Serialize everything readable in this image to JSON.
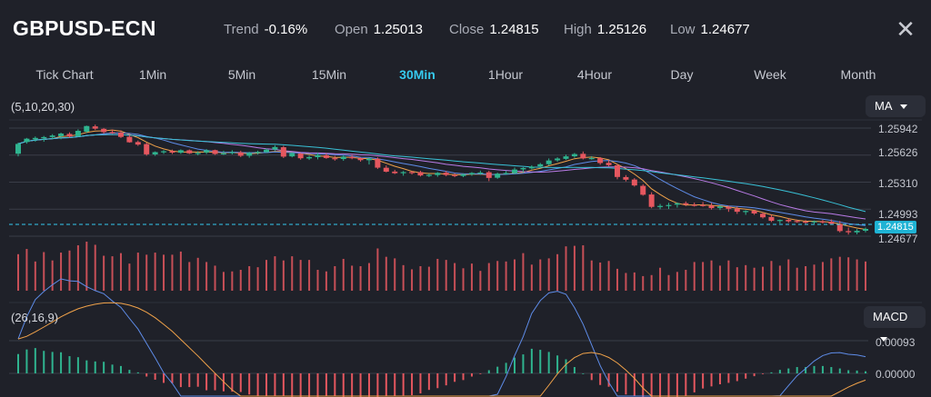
{
  "header": {
    "symbol": "GBPUSD-ECN",
    "trend_label": "Trend",
    "trend_value": "-0.16%",
    "open_label": "Open",
    "open_value": "1.25013",
    "close_label": "Close",
    "close_value": "1.24815",
    "high_label": "High",
    "high_value": "1.25126",
    "low_label": "Low",
    "low_value": "1.24677",
    "close_icon": "close-x-icon"
  },
  "timeframes": [
    "Tick Chart",
    "1Min",
    "5Min",
    "15Min",
    "30Min",
    "1Hour",
    "4Hour",
    "Day",
    "Week",
    "Month"
  ],
  "active_timeframe": "30Min",
  "main_panel": {
    "params": "(5,10,20,30)",
    "indicator": "MA",
    "price_levels": [
      "1.25942",
      "1.25626",
      "1.25310",
      "1.24993",
      "1.24677"
    ],
    "current_price": "1.24815"
  },
  "macd_panel": {
    "params": "(26,16,9)",
    "indicator": "MACD",
    "levels": [
      "0.00093",
      "0.00000"
    ]
  },
  "colors": {
    "up": "#2fb48f",
    "down": "#e5575f",
    "accent": "#36c9ee",
    "background": "#1f2129"
  },
  "chart_data": {
    "type": "candlestick",
    "ohlc": [
      [
        1.25642,
        1.25772,
        1.25611,
        1.25757
      ],
      [
        1.25779,
        1.25827,
        1.2576,
        1.25818
      ],
      [
        1.2581,
        1.25844,
        1.25783,
        1.25827
      ],
      [
        1.25822,
        1.2585,
        1.25782,
        1.25837
      ],
      [
        1.25837,
        1.25871,
        1.25812,
        1.25855
      ],
      [
        1.25847,
        1.25889,
        1.25811,
        1.25878
      ],
      [
        1.25874,
        1.25893,
        1.2583,
        1.25844
      ],
      [
        1.25847,
        1.25928,
        1.25839,
        1.2591
      ],
      [
        1.259,
        1.25971,
        1.25886,
        1.25966
      ],
      [
        1.25962,
        1.25983,
        1.2592,
        1.25935
      ],
      [
        1.25933,
        1.25943,
        1.25878,
        1.25895
      ],
      [
        1.25895,
        1.25926,
        1.25875,
        1.25893
      ],
      [
        1.25888,
        1.25916,
        1.25826,
        1.25839
      ],
      [
        1.2584,
        1.25862,
        1.25771,
        1.25776
      ],
      [
        1.25779,
        1.25797,
        1.25734,
        1.25749
      ],
      [
        1.25755,
        1.25772,
        1.25619,
        1.25635
      ],
      [
        1.25634,
        1.25669,
        1.25617,
        1.25661
      ],
      [
        1.2566,
        1.25684,
        1.2564,
        1.25671
      ],
      [
        1.25673,
        1.2569,
        1.25639,
        1.25655
      ],
      [
        1.25654,
        1.25693,
        1.25641,
        1.25683
      ],
      [
        1.25682,
        1.25692,
        1.25639,
        1.25647
      ],
      [
        1.25649,
        1.25671,
        1.25624,
        1.25652
      ],
      [
        1.25657,
        1.25697,
        1.25639,
        1.25683
      ],
      [
        1.25684,
        1.2569,
        1.25629,
        1.25639
      ],
      [
        1.25642,
        1.25677,
        1.25628,
        1.25647
      ],
      [
        1.2565,
        1.25683,
        1.25634,
        1.25661
      ],
      [
        1.25658,
        1.25677,
        1.25603,
        1.25618
      ],
      [
        1.25618,
        1.25664,
        1.25595,
        1.25652
      ],
      [
        1.25653,
        1.25678,
        1.25633,
        1.25664
      ],
      [
        1.25661,
        1.25704,
        1.25652,
        1.2569
      ],
      [
        1.25691,
        1.25741,
        1.25673,
        1.2572
      ],
      [
        1.25718,
        1.25735,
        1.25591,
        1.25608
      ],
      [
        1.25611,
        1.25659,
        1.256,
        1.25648
      ],
      [
        1.25645,
        1.25652,
        1.25572,
        1.25589
      ],
      [
        1.25587,
        1.25619,
        1.25569,
        1.25603
      ],
      [
        1.25602,
        1.25653,
        1.25576,
        1.25626
      ],
      [
        1.25624,
        1.25647,
        1.25582,
        1.25592
      ],
      [
        1.2559,
        1.25617,
        1.25561,
        1.25577
      ],
      [
        1.2558,
        1.25627,
        1.25559,
        1.25608
      ],
      [
        1.25605,
        1.25627,
        1.25577,
        1.25589
      ],
      [
        1.25589,
        1.25599,
        1.25549,
        1.25567
      ],
      [
        1.25566,
        1.25595,
        1.25516,
        1.25585
      ],
      [
        1.25583,
        1.256,
        1.25464,
        1.25479
      ],
      [
        1.25478,
        1.25505,
        1.25424,
        1.25432
      ],
      [
        1.25433,
        1.25454,
        1.25404,
        1.25414
      ],
      [
        1.25416,
        1.2544,
        1.25385,
        1.25427
      ],
      [
        1.25428,
        1.2544,
        1.25399,
        1.25427
      ],
      [
        1.25427,
        1.25442,
        1.25376,
        1.25388
      ],
      [
        1.25387,
        1.2541,
        1.25369,
        1.25395
      ],
      [
        1.25393,
        1.25427,
        1.25372,
        1.25418
      ],
      [
        1.2542,
        1.2544,
        1.25378,
        1.25393
      ],
      [
        1.25394,
        1.25413,
        1.25368,
        1.25383
      ],
      [
        1.25382,
        1.25413,
        1.25368,
        1.254
      ],
      [
        1.25401,
        1.25427,
        1.25384,
        1.25417
      ],
      [
        1.25417,
        1.25444,
        1.25395,
        1.25422
      ],
      [
        1.25425,
        1.25442,
        1.25321,
        1.25359
      ],
      [
        1.25361,
        1.2542,
        1.25348,
        1.25409
      ],
      [
        1.25409,
        1.25441,
        1.25399,
        1.25416
      ],
      [
        1.25415,
        1.25481,
        1.25401,
        1.25457
      ],
      [
        1.25459,
        1.25484,
        1.25424,
        1.25475
      ],
      [
        1.25471,
        1.25507,
        1.25457,
        1.25491
      ],
      [
        1.25494,
        1.25534,
        1.25474,
        1.25519
      ],
      [
        1.2552,
        1.25587,
        1.25503,
        1.25563
      ],
      [
        1.25565,
        1.25601,
        1.25549,
        1.25586
      ],
      [
        1.25582,
        1.25632,
        1.2557,
        1.25611
      ],
      [
        1.25612,
        1.25651,
        1.25595,
        1.25638
      ],
      [
        1.25641,
        1.25668,
        1.25575,
        1.25587
      ],
      [
        1.2559,
        1.25613,
        1.25572,
        1.25591
      ],
      [
        1.2559,
        1.25603,
        1.25513,
        1.25533
      ],
      [
        1.25536,
        1.25565,
        1.25495,
        1.25508
      ],
      [
        1.25506,
        1.2552,
        1.25343,
        1.2537
      ],
      [
        1.25369,
        1.25392,
        1.25318,
        1.25338
      ],
      [
        1.2534,
        1.25357,
        1.25257,
        1.25271
      ],
      [
        1.25266,
        1.25285,
        1.25151,
        1.25162
      ],
      [
        1.25165,
        1.25191,
        1.25004,
        1.2502
      ],
      [
        1.25022,
        1.25054,
        1.24992,
        1.25031
      ],
      [
        1.25035,
        1.25068,
        1.24996,
        1.25042
      ],
      [
        1.25046,
        1.25072,
        1.25012,
        1.25062
      ],
      [
        1.25063,
        1.25084,
        1.2503,
        1.25046
      ],
      [
        1.25045,
        1.25071,
        1.25024,
        1.2504
      ],
      [
        1.25043,
        1.25077,
        1.25022,
        1.25031
      ],
      [
        1.25034,
        1.25067,
        1.24988,
        1.25006
      ],
      [
        1.25007,
        1.2504,
        1.24983,
        1.25025
      ],
      [
        1.2502,
        1.25034,
        1.24962,
        1.24998
      ],
      [
        1.24999,
        1.25024,
        1.24938,
        1.24963
      ],
      [
        1.24961,
        1.2498,
        1.24927,
        1.24972
      ],
      [
        1.24975,
        1.24983,
        1.24927,
        1.24943
      ],
      [
        1.2494,
        1.24957,
        1.24883,
        1.24898
      ],
      [
        1.24902,
        1.24927,
        1.24843,
        1.24857
      ],
      [
        1.24856,
        1.24873,
        1.24826,
        1.24867
      ],
      [
        1.24868,
        1.2489,
        1.24834,
        1.24851
      ],
      [
        1.24855,
        1.24872,
        1.24834,
        1.24846
      ],
      [
        1.24848,
        1.24866,
        1.24823,
        1.24842
      ],
      [
        1.24839,
        1.2486,
        1.24822,
        1.24851
      ],
      [
        1.2485,
        1.24867,
        1.24826,
        1.24844
      ],
      [
        1.24847,
        1.24873,
        1.24809,
        1.24822
      ],
      [
        1.24818,
        1.24855,
        1.24721,
        1.24737
      ],
      [
        1.24737,
        1.24777,
        1.24696,
        1.24723
      ],
      [
        1.24722,
        1.24761,
        1.24699,
        1.2474
      ],
      [
        1.24741,
        1.24778,
        1.24722,
        1.24762
      ]
    ],
    "ma_lines": [
      {
        "name": "MA5",
        "color": "#f0a24a"
      },
      {
        "name": "MA10",
        "color": "#5e8ce8"
      },
      {
        "name": "MA20",
        "color": "#b97be6"
      },
      {
        "name": "MA30",
        "color": "#39c1d6"
      }
    ],
    "volume": [
      70,
      80,
      56,
      74,
      58,
      73,
      77,
      87,
      94,
      88,
      67,
      66,
      72,
      52,
      73,
      69,
      73,
      69,
      69,
      75,
      55,
      63,
      55,
      48,
      36,
      37,
      40,
      47,
      45,
      59,
      66,
      58,
      66,
      59,
      59,
      40,
      37,
      47,
      61,
      48,
      47,
      53,
      81,
      65,
      62,
      49,
      41,
      47,
      46,
      61,
      59,
      53,
      43,
      52,
      38,
      53,
      57,
      56,
      60,
      72,
      50,
      60,
      62,
      70,
      85,
      86,
      87,
      58,
      54,
      57,
      42,
      34,
      35,
      28,
      30,
      44,
      30,
      36,
      40,
      55,
      55,
      58,
      48,
      58,
      45,
      49,
      44,
      46,
      57,
      48,
      60,
      44,
      47,
      50,
      55,
      62,
      65,
      64,
      60,
      56
    ],
    "macd": {
      "histogram": [
        0.00055,
        0.00068,
        0.00072,
        0.00064,
        0.00061,
        0.0006,
        0.00049,
        0.00046,
        0.00037,
        0.00034,
        0.00033,
        0.00025,
        0.00021,
        0.0001,
        3e-05,
        -9e-05,
        -0.00018,
        -0.00027,
        -0.00028,
        -0.00039,
        -0.00039,
        -0.00038,
        -0.00048,
        -0.00048,
        -0.00051,
        -0.00052,
        -0.00053,
        -0.0006,
        -0.00066,
        -0.00066,
        -0.00064,
        -0.00064,
        -0.00068,
        -0.00075,
        -0.00074,
        -0.00073,
        -0.00065,
        -0.00064,
        -0.00068,
        -0.00068,
        -0.00068,
        -0.00067,
        -0.00068,
        -0.00066,
        -0.00065,
        -0.00063,
        -0.00062,
        -0.00057,
        -0.00047,
        -0.00042,
        -0.00034,
        -0.00024,
        -0.00019,
        -9e-05,
        -2e-05,
        9e-05,
        0.00019,
        0.0003,
        0.00045,
        0.00054,
        0.0007,
        0.00067,
        0.00061,
        0.00051,
        0.0004,
        0.00018,
        0.0,
        -0.00019,
        -0.00033,
        -0.00038,
        -0.00052,
        -0.0006,
        -0.00065,
        -0.00079,
        -0.00079,
        -0.00079,
        -0.00073,
        -0.00074,
        -0.00064,
        -0.00054,
        -0.00043,
        -0.00037,
        -0.00031,
        -0.00027,
        -0.00022,
        -0.00015,
        -8e-05,
        -1e-05,
        3e-05,
        0.0001,
        0.00014,
        0.00018,
        0.00018,
        0.00021,
        0.00021,
        0.00018,
        0.00014,
        9e-05,
        8e-05,
        6e-05
      ]
    }
  }
}
